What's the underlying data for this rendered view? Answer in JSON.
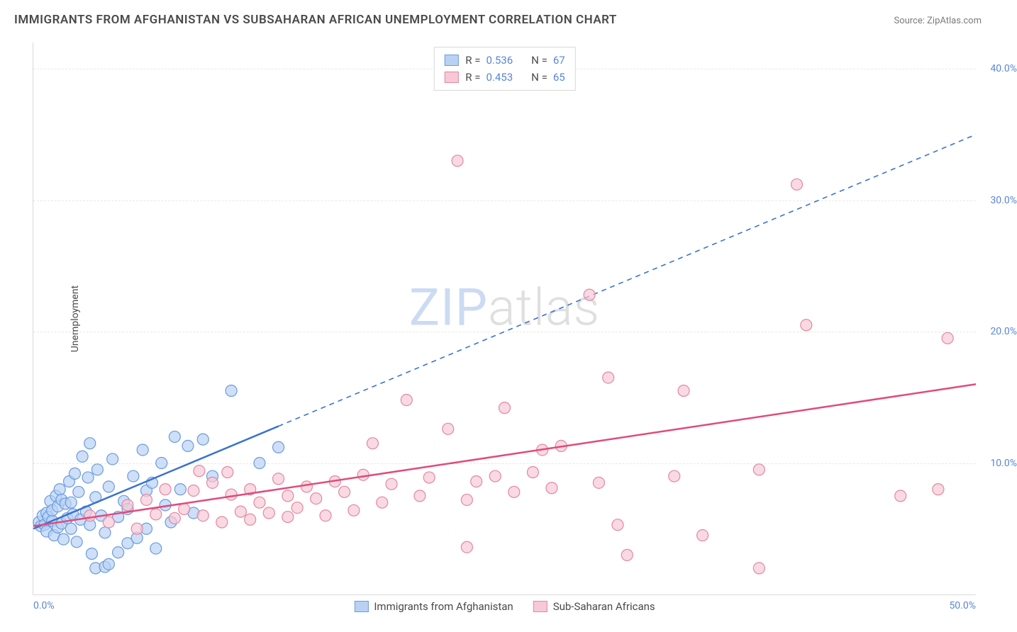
{
  "title": "IMMIGRANTS FROM AFGHANISTAN VS SUBSAHARAN AFRICAN UNEMPLOYMENT CORRELATION CHART",
  "source": "Source: ZipAtlas.com",
  "ylabel": "Unemployment",
  "watermark_zip": "ZIP",
  "watermark_atlas": "atlas",
  "chart": {
    "type": "scatter",
    "xlim": [
      0,
      50
    ],
    "ylim": [
      0,
      42
    ],
    "xticks": [
      {
        "pos": 0,
        "label": "0.0%"
      },
      {
        "pos": 50,
        "label": "50.0%"
      }
    ],
    "yticks": [
      {
        "pos": 10,
        "label": "10.0%"
      },
      {
        "pos": 20,
        "label": "20.0%"
      },
      {
        "pos": 30,
        "label": "30.0%"
      },
      {
        "pos": 40,
        "label": "40.0%"
      }
    ],
    "background_color": "#ffffff",
    "grid_color": "#e8e8e8",
    "axis_color": "#d8d8d8",
    "tick_label_color": "#5b86d6",
    "marker_radius": 8,
    "marker_stroke_width": 1.2,
    "series": [
      {
        "key": "afghanistan",
        "label": "Immigrants from Afghanistan",
        "fill": "#b9d2f3",
        "stroke": "#6a9be0",
        "line_color": "#3a72d0",
        "R": "0.536",
        "N": "67",
        "trend": {
          "x1": 0,
          "y1": 5.0,
          "x2": 50,
          "y2": 35.0,
          "solid_until_x": 13
        },
        "points": [
          [
            0.3,
            5.5
          ],
          [
            0.4,
            5.2
          ],
          [
            0.5,
            6.0
          ],
          [
            0.6,
            5.3
          ],
          [
            0.7,
            6.2
          ],
          [
            0.7,
            4.8
          ],
          [
            0.8,
            5.9
          ],
          [
            0.9,
            7.1
          ],
          [
            1.0,
            5.6
          ],
          [
            1.0,
            6.4
          ],
          [
            1.1,
            4.5
          ],
          [
            1.2,
            7.5
          ],
          [
            1.3,
            5.1
          ],
          [
            1.3,
            6.7
          ],
          [
            1.4,
            8.0
          ],
          [
            1.5,
            5.4
          ],
          [
            1.5,
            7.2
          ],
          [
            1.6,
            4.2
          ],
          [
            1.7,
            6.9
          ],
          [
            1.8,
            5.8
          ],
          [
            1.9,
            8.6
          ],
          [
            2.0,
            7.0
          ],
          [
            2.0,
            5.0
          ],
          [
            2.1,
            6.1
          ],
          [
            2.2,
            9.2
          ],
          [
            2.3,
            4.0
          ],
          [
            2.4,
            7.8
          ],
          [
            2.5,
            5.7
          ],
          [
            2.6,
            10.5
          ],
          [
            2.8,
            6.3
          ],
          [
            2.9,
            8.9
          ],
          [
            3.0,
            11.5
          ],
          [
            3.0,
            5.3
          ],
          [
            3.1,
            3.1
          ],
          [
            3.3,
            7.4
          ],
          [
            3.3,
            2.0
          ],
          [
            3.4,
            9.5
          ],
          [
            3.6,
            6.0
          ],
          [
            3.8,
            4.7
          ],
          [
            3.8,
            2.1
          ],
          [
            4.0,
            8.2
          ],
          [
            4.0,
            2.3
          ],
          [
            4.2,
            10.3
          ],
          [
            4.5,
            5.9
          ],
          [
            4.5,
            3.2
          ],
          [
            4.8,
            7.1
          ],
          [
            5.0,
            6.5
          ],
          [
            5.0,
            3.9
          ],
          [
            5.3,
            9.0
          ],
          [
            5.5,
            4.3
          ],
          [
            5.8,
            11.0
          ],
          [
            6.0,
            7.9
          ],
          [
            6.0,
            5.0
          ],
          [
            6.3,
            8.5
          ],
          [
            6.5,
            3.5
          ],
          [
            6.8,
            10.0
          ],
          [
            7.0,
            6.8
          ],
          [
            7.3,
            5.5
          ],
          [
            7.5,
            12.0
          ],
          [
            7.8,
            8.0
          ],
          [
            8.2,
            11.3
          ],
          [
            8.5,
            6.2
          ],
          [
            9.0,
            11.8
          ],
          [
            9.5,
            9.0
          ],
          [
            10.5,
            15.5
          ],
          [
            12.0,
            10.0
          ],
          [
            13.0,
            11.2
          ]
        ]
      },
      {
        "key": "subsaharan",
        "label": "Sub-Saharan Africans",
        "fill": "#f7c9d6",
        "stroke": "#e387a2",
        "line_color": "#e14b7b",
        "R": "0.453",
        "N": "65",
        "trend": {
          "x1": 0,
          "y1": 5.2,
          "x2": 50,
          "y2": 16.0,
          "solid_until_x": 50
        },
        "points": [
          [
            3.0,
            6.0
          ],
          [
            4.0,
            5.5
          ],
          [
            5.0,
            6.8
          ],
          [
            5.5,
            5.0
          ],
          [
            6.0,
            7.2
          ],
          [
            6.5,
            6.1
          ],
          [
            7.0,
            8.0
          ],
          [
            7.5,
            5.8
          ],
          [
            8.0,
            6.5
          ],
          [
            8.5,
            7.9
          ],
          [
            8.8,
            9.4
          ],
          [
            9.0,
            6.0
          ],
          [
            9.5,
            8.5
          ],
          [
            10.0,
            5.5
          ],
          [
            10.3,
            9.3
          ],
          [
            10.5,
            7.6
          ],
          [
            11.0,
            6.3
          ],
          [
            11.5,
            8.0
          ],
          [
            11.5,
            5.7
          ],
          [
            12.0,
            7.0
          ],
          [
            12.5,
            6.2
          ],
          [
            13.0,
            8.8
          ],
          [
            13.5,
            5.9
          ],
          [
            13.5,
            7.5
          ],
          [
            14.0,
            6.6
          ],
          [
            14.5,
            8.2
          ],
          [
            15.0,
            7.3
          ],
          [
            15.5,
            6.0
          ],
          [
            16.0,
            8.6
          ],
          [
            16.5,
            7.8
          ],
          [
            17.0,
            6.4
          ],
          [
            17.5,
            9.1
          ],
          [
            18.0,
            11.5
          ],
          [
            18.5,
            7.0
          ],
          [
            19.0,
            8.4
          ],
          [
            19.8,
            14.8
          ],
          [
            20.5,
            7.5
          ],
          [
            21.0,
            8.9
          ],
          [
            22.0,
            12.6
          ],
          [
            22.5,
            33.0
          ],
          [
            23.0,
            7.2
          ],
          [
            23.0,
            3.6
          ],
          [
            23.5,
            8.6
          ],
          [
            24.5,
            9.0
          ],
          [
            25.0,
            14.2
          ],
          [
            25.5,
            7.8
          ],
          [
            26.5,
            9.3
          ],
          [
            27.0,
            11.0
          ],
          [
            27.5,
            8.1
          ],
          [
            28.0,
            11.3
          ],
          [
            29.5,
            22.8
          ],
          [
            30.0,
            8.5
          ],
          [
            30.5,
            16.5
          ],
          [
            31.0,
            5.3
          ],
          [
            31.5,
            3.0
          ],
          [
            34.0,
            9.0
          ],
          [
            34.5,
            15.5
          ],
          [
            35.5,
            4.5
          ],
          [
            38.5,
            9.5
          ],
          [
            38.5,
            2.0
          ],
          [
            40.5,
            31.2
          ],
          [
            41.0,
            20.5
          ],
          [
            46.0,
            7.5
          ],
          [
            48.5,
            19.5
          ],
          [
            48.0,
            8.0
          ]
        ]
      }
    ]
  },
  "legend_top": {
    "r_label": "R =",
    "n_label": "N ="
  }
}
